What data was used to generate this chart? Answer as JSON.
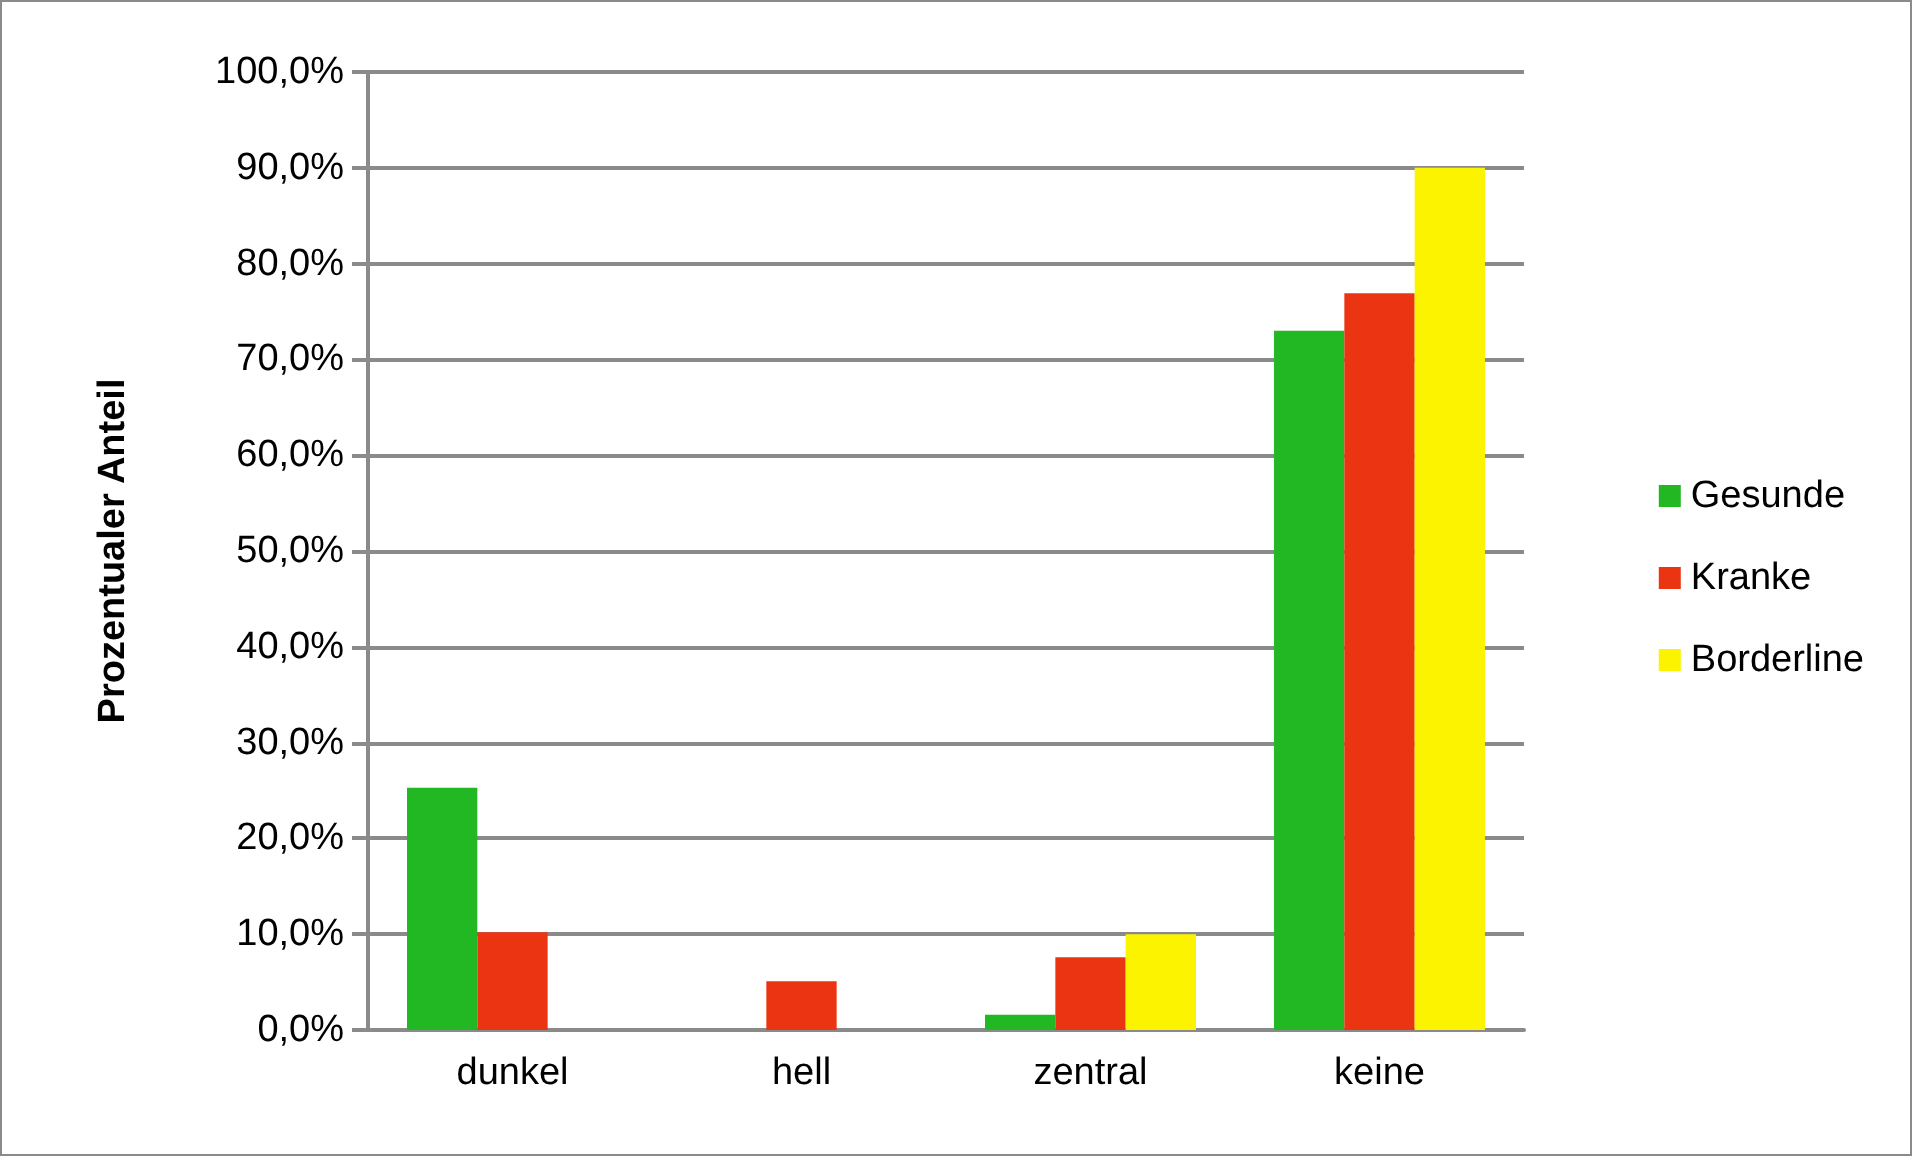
{
  "chart_data": {
    "type": "bar",
    "ylabel": "Prozentualer Anteil",
    "categories": [
      "dunkel",
      "hell",
      "zentral",
      "keine"
    ],
    "series": [
      {
        "name": "Gesunde",
        "color": "#21b823",
        "values": [
          25.3,
          0,
          1.6,
          73.0
        ]
      },
      {
        "name": "Kranke",
        "color": "#eb3412",
        "values": [
          10.2,
          5.1,
          7.6,
          76.9
        ]
      },
      {
        "name": "Borderline",
        "color": "#fbf300",
        "values": [
          0,
          0,
          10.0,
          90.0
        ]
      }
    ],
    "ylim": [
      0,
      100
    ],
    "yticks": [
      {
        "value": 0,
        "label": "0,0%"
      },
      {
        "value": 10,
        "label": "10,0%"
      },
      {
        "value": 20,
        "label": "20,0%"
      },
      {
        "value": 30,
        "label": "30,0%"
      },
      {
        "value": 40,
        "label": "40,0%"
      },
      {
        "value": 50,
        "label": "50,0%"
      },
      {
        "value": 60,
        "label": "60,0%"
      },
      {
        "value": 70,
        "label": "70,0%"
      },
      {
        "value": 80,
        "label": "80,0%"
      },
      {
        "value": 90,
        "label": "90,0%"
      },
      {
        "value": 100,
        "label": "100,0%"
      }
    ],
    "grid": "y",
    "legend": "right"
  }
}
